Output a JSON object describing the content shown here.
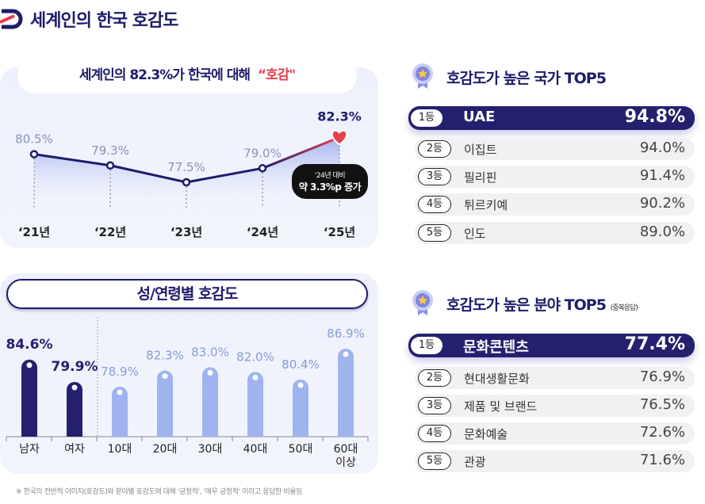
{
  "title": "세계인의 한국 호감도",
  "line_section": {
    "title_prefix": "세계인의 82.3%가 한국에 대해",
    "title_highlight": "“호감\"",
    "tooltip_line1": "'24년 대비",
    "tooltip_line2": "약 3.3%p 증가"
  },
  "bar_section": {
    "title": "성/연령별 호감도"
  },
  "chart_data": [
    {
      "type": "line",
      "categories": [
        "‘21년",
        "‘22년",
        "‘23년",
        "‘24년",
        "‘25년"
      ],
      "values": [
        80.5,
        79.3,
        77.5,
        79.0,
        82.3
      ],
      "labels": [
        "80.5%",
        "79.3%",
        "77.5%",
        "79.0%",
        "82.3%"
      ],
      "colors": {
        "line": "#1e1c6b",
        "highlight": "#e8404f",
        "label": "#8a93b8"
      }
    },
    {
      "type": "bar",
      "categories": [
        "남자",
        "여자",
        "10대",
        "20대",
        "30대",
        "40대",
        "50대",
        "60대 이상"
      ],
      "values": [
        84.6,
        79.9,
        78.9,
        82.3,
        83.0,
        82.0,
        80.4,
        86.9
      ],
      "labels": [
        "84.6%",
        "79.9%",
        "78.9%",
        "82.3%",
        "83.0%",
        "82.0%",
        "80.4%",
        "86.9%"
      ],
      "colors": {
        "gender": "#25206e",
        "age": "#9fb4ee",
        "age_label": "#8a9bd4"
      }
    }
  ],
  "countries": {
    "title": "호감도가 높은 국가 TOP5",
    "rows": [
      {
        "rank": "1등",
        "name": "UAE",
        "value": "94.8%"
      },
      {
        "rank": "2등",
        "name": "이집트",
        "value": "94.0%"
      },
      {
        "rank": "3등",
        "name": "필리핀",
        "value": "91.4%"
      },
      {
        "rank": "4등",
        "name": "튀르키예",
        "value": "90.2%"
      },
      {
        "rank": "5등",
        "name": "인도",
        "value": "89.0%"
      }
    ]
  },
  "fields": {
    "title": "호감도가 높은 분야 TOP5",
    "note": "(중복응답)",
    "rows": [
      {
        "rank": "1등",
        "name": "문화콘텐츠",
        "value": "77.4%"
      },
      {
        "rank": "2등",
        "name": "현대생활문화",
        "value": "76.9%"
      },
      {
        "rank": "3등",
        "name": "제품 및 브랜드",
        "value": "76.5%"
      },
      {
        "rank": "4등",
        "name": "문화예술",
        "value": "72.6%"
      },
      {
        "rank": "5등",
        "name": "관광",
        "value": "71.6%"
      }
    ]
  },
  "footnote": "※ 한국의 전반적 이미지(호감도)와 분야별 호감도에 대해 '긍정적', '매우 긍정적' 이라고 응답한 비율임"
}
